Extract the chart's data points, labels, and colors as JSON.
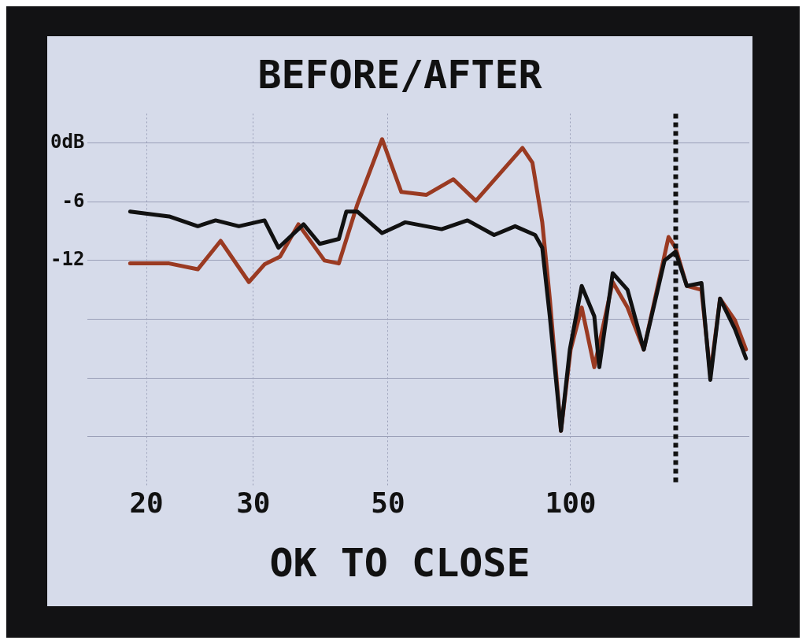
{
  "chart_data": {
    "type": "line",
    "title": "BEFORE/AFTER",
    "annotations": [
      "OK TO CLOSE"
    ],
    "log": "x",
    "grid": true,
    "legend": false,
    "marker": "none",
    "line_style": "solid",
    "xlim": [
      16,
      197
    ],
    "xticks": [
      20,
      30,
      50,
      100
    ],
    "ylim": [
      -35,
      3
    ],
    "yticks": [
      {
        "value": 0,
        "label": "0dB"
      },
      -6,
      -12,
      {
        "value": -18,
        "label": null
      },
      {
        "value": -24,
        "label": null
      },
      {
        "value": -30,
        "label": null
      }
    ],
    "ref_lines": [
      {
        "axis": "x",
        "value": 149,
        "color": "#111111",
        "line_style": "dashed"
      }
    ],
    "series": [
      {
        "color": "#9a3a22",
        "x": [
          18.8,
          21.8,
          24.3,
          26.5,
          29.5,
          31.3,
          33.2,
          35.6,
          39.3,
          41.5,
          44.5,
          48.9,
          52.6,
          57.8,
          64.1,
          69.8,
          83.3,
          86.5,
          89.8,
          92.4,
          96.4,
          100,
          104.3,
          109.4,
          117.3,
          124.1,
          132,
          145,
          148.9,
          155.4,
          164.3,
          169.9,
          176.3,
          186.5,
          194.5
        ],
        "values": [
          -12.3,
          -12.3,
          -12.9,
          -10,
          -14.2,
          -12.4,
          -11.6,
          -8.3,
          -12,
          -12.3,
          -6.3,
          0.4,
          -5,
          -5.3,
          -3.7,
          -5.9,
          -0.5,
          -2,
          -8.1,
          -15.9,
          -29.4,
          -21.1,
          -16.8,
          -22.9,
          -14.2,
          -16.8,
          -21.1,
          -9.6,
          -10.7,
          -14.6,
          -15,
          -23.7,
          -15.9,
          -18.1,
          -21.1
        ]
      },
      {
        "color": "#111111",
        "x": [
          18.8,
          21.8,
          24.3,
          26,
          28.4,
          31.3,
          33,
          36.3,
          38.6,
          41.5,
          42.7,
          44.5,
          48.9,
          53.4,
          61.3,
          67.6,
          74.8,
          81,
          87.4,
          89.8,
          92.4,
          96.4,
          99.7,
          104.3,
          109.4,
          111.5,
          117.3,
          124.1,
          132,
          142.8,
          148.9,
          155.4,
          164.3,
          169.9,
          176.3,
          186.5,
          194.5
        ],
        "values": [
          -7,
          -7.5,
          -8.5,
          -7.9,
          -8.5,
          -7.9,
          -10.7,
          -8.3,
          -10.3,
          -9.8,
          -7,
          -7,
          -9.2,
          -8.1,
          -8.8,
          -7.9,
          -9.4,
          -8.5,
          -9.4,
          -10.7,
          -17.7,
          -29.4,
          -21.1,
          -14.6,
          -17.7,
          -22.9,
          -13.3,
          -15,
          -21.1,
          -12,
          -11.1,
          -14.6,
          -14.3,
          -24.2,
          -15.9,
          -19,
          -22
        ]
      }
    ]
  }
}
